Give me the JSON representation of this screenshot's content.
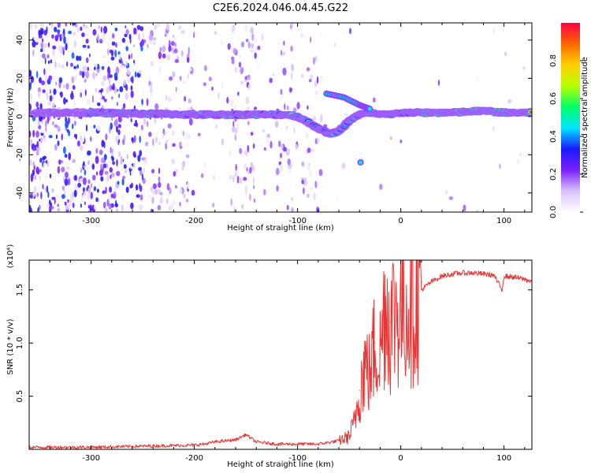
{
  "figure": {
    "title": "C2E6.2024.046.04.45.G22"
  },
  "chart_data": [
    {
      "type": "heatmap",
      "xlabel": "Height of straight line (km)",
      "ylabel": "Frequency (Hz)",
      "xlim": [
        -360,
        127
      ],
      "ylim": [
        -50,
        49
      ],
      "x_ticks": [
        -300,
        -200,
        -100,
        0,
        100
      ],
      "y_ticks": [
        -40,
        -20,
        0,
        20,
        40
      ],
      "colorbar": {
        "label": "Normalized spectral amplitude",
        "range": [
          0,
          1
        ],
        "ticks": [
          0.0,
          0.2,
          0.4,
          0.6,
          0.8
        ],
        "colormap": [
          "#ffffff",
          "#d9c2ff",
          "#7a1fff",
          "#1a1aff",
          "#00e5ff",
          "#00ff66",
          "#b8ff00",
          "#ffd000",
          "#ff6600",
          "#ff0044"
        ]
      },
      "trace": {
        "x": [
          -360,
          -300,
          -250,
          -200,
          -150,
          -110,
          -100,
          -90,
          -80,
          -70,
          -60,
          -50,
          -40,
          -30,
          -20,
          -10,
          0,
          20,
          50,
          80,
          100,
          127
        ],
        "y": [
          2,
          2,
          1.5,
          1,
          1,
          1,
          0,
          -3,
          -6,
          -9,
          -8,
          -2,
          1,
          2,
          1,
          1,
          2,
          2,
          2,
          3,
          2,
          2
        ]
      },
      "features": [
        {
          "label": "upper branch",
          "x": [
            -72,
            -55,
            -40,
            -30
          ],
          "y": [
            12,
            10,
            6,
            4
          ]
        },
        {
          "label": "isolated blob",
          "x": [
            -39
          ],
          "y": [
            -24
          ]
        }
      ]
    },
    {
      "type": "line",
      "xlabel": "Height of straight line (km)",
      "ylabel": "SNR (10 * v/v)",
      "scale_note": "(x10⁴)",
      "xlim": [
        -360,
        127
      ],
      "ylim": [
        0,
        1.78
      ],
      "x_ticks": [
        -300,
        -200,
        -100,
        0,
        100
      ],
      "y_ticks": [
        0.5,
        1.0,
        1.5
      ],
      "y_tick_labels": [
        "0.5",
        "1.0",
        "1.5"
      ],
      "color": "#ee3333",
      "series": [
        {
          "x": [
            -360,
            -300,
            -250,
            -200,
            -190,
            -180,
            -170,
            -160,
            -150,
            -140,
            -120,
            -100,
            -80,
            -60,
            -50,
            -45,
            -40,
            -35,
            -30,
            -25,
            -20,
            -15,
            -10,
            -5,
            0,
            10,
            20,
            30,
            40,
            50,
            60,
            70,
            80,
            90,
            98,
            100,
            110,
            120,
            127
          ],
          "y": [
            0.02,
            0.02,
            0.03,
            0.04,
            0.05,
            0.07,
            0.08,
            0.09,
            0.14,
            0.07,
            0.05,
            0.05,
            0.05,
            0.08,
            0.12,
            0.25,
            0.55,
            0.8,
            0.7,
            1.0,
            0.9,
            1.4,
            1.2,
            1.3,
            1.3,
            1.4,
            1.5,
            1.58,
            1.63,
            1.65,
            1.66,
            1.66,
            1.65,
            1.64,
            1.5,
            1.63,
            1.62,
            1.6,
            1.58
          ]
        }
      ]
    }
  ]
}
